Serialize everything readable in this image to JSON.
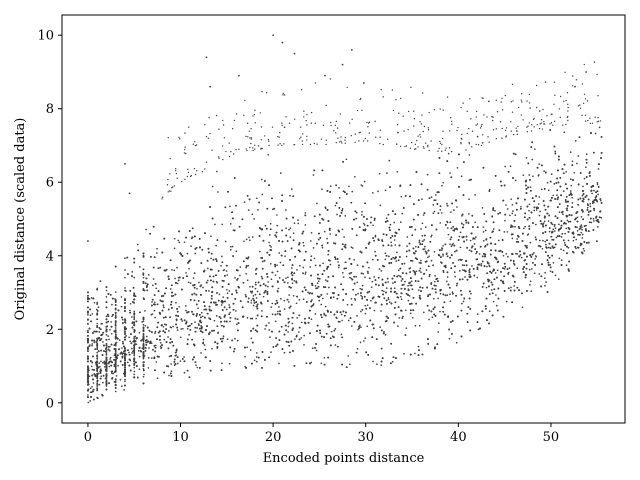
{
  "chart_data": {
    "type": "scatter",
    "title": "",
    "xlabel": "Encoded points distance",
    "ylabel": "Original distance (scaled data)",
    "xlim": [
      -2.8,
      58.0
    ],
    "ylim": [
      -0.55,
      10.55
    ],
    "x_ticks": [
      0,
      10,
      20,
      30,
      40,
      50
    ],
    "y_ticks": [
      0,
      2,
      4,
      6,
      8,
      10
    ],
    "x_tick_labels": [
      "0",
      "10",
      "20",
      "30",
      "40",
      "50"
    ],
    "y_tick_labels": [
      "0",
      "2",
      "4",
      "6",
      "8",
      "10"
    ],
    "grid": false,
    "legend": "none",
    "marker_color": "#404040",
    "x_range_of_points": [
      0,
      55.5
    ],
    "point_density_note": "dense cloud",
    "trend_points": [
      {
        "x": 0,
        "y_low": 0.0,
        "y_mid": 1.0,
        "y_high": 3.7
      },
      {
        "x": 2,
        "y_low": 0.2,
        "y_mid": 1.2,
        "y_high": 3.3
      },
      {
        "x": 5,
        "y_low": 0.4,
        "y_mid": 1.7,
        "y_high": 4.8
      },
      {
        "x": 10,
        "y_low": 0.6,
        "y_mid": 2.4,
        "y_high": 6.0
      },
      {
        "x": 15,
        "y_low": 0.8,
        "y_mid": 2.9,
        "y_high": 6.6
      },
      {
        "x": 20,
        "y_low": 0.9,
        "y_mid": 3.2,
        "y_high": 7.0
      },
      {
        "x": 25,
        "y_low": 1.0,
        "y_mid": 3.3,
        "y_high": 7.0
      },
      {
        "x": 30,
        "y_low": 0.9,
        "y_mid": 3.4,
        "y_high": 7.1
      },
      {
        "x": 35,
        "y_low": 1.2,
        "y_mid": 3.6,
        "y_high": 6.9
      },
      {
        "x": 40,
        "y_low": 1.6,
        "y_mid": 3.8,
        "y_high": 6.8
      },
      {
        "x": 45,
        "y_low": 2.3,
        "y_mid": 4.2,
        "y_high": 7.2
      },
      {
        "x": 50,
        "y_low": 3.0,
        "y_mid": 4.8,
        "y_high": 7.5
      },
      {
        "x": 55,
        "y_low": 4.3,
        "y_mid": 5.5,
        "y_high": 7.6
      }
    ],
    "outliers": [
      {
        "x": 20.0,
        "y": 10.0
      },
      {
        "x": 21.0,
        "y": 9.8
      },
      {
        "x": 28.5,
        "y": 9.6
      },
      {
        "x": 27.5,
        "y": 9.2
      },
      {
        "x": 22.3,
        "y": 9.5
      },
      {
        "x": 12.8,
        "y": 9.4
      },
      {
        "x": 16.3,
        "y": 8.9
      },
      {
        "x": 13.2,
        "y": 8.6
      },
      {
        "x": 25.6,
        "y": 8.9
      },
      {
        "x": 29.8,
        "y": 8.7
      },
      {
        "x": 53.8,
        "y": 9.0
      },
      {
        "x": 52.6,
        "y": 8.6
      },
      {
        "x": 43.3,
        "y": 8.2
      },
      {
        "x": 4.0,
        "y": 6.5
      },
      {
        "x": 4.5,
        "y": 5.7
      },
      {
        "x": 0.0,
        "y": 4.4
      }
    ]
  }
}
